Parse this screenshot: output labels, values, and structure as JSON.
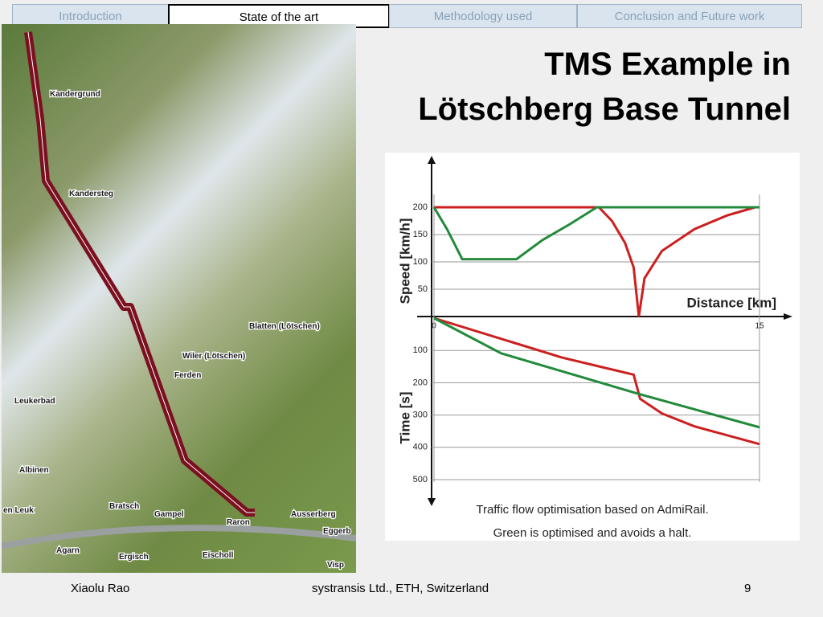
{
  "nav": {
    "tabs": [
      "Introduction",
      "State of the art",
      "Methodology used",
      "Conclusion and Future work"
    ]
  },
  "title": [
    "TMS Example in",
    "Lötschberg Base Tunnel"
  ],
  "map": {
    "labels": [
      "Kandergrund",
      "Kandersteg",
      "Blatten (Lötschen)",
      "Wiler (Lötschen)",
      "Ferden",
      "Leukerbad",
      "Albinen",
      "en Leuk",
      "Bratsch",
      "Gampel",
      "Raron",
      "Ausserberg",
      "Eggerb",
      "Agarn",
      "Ergisch",
      "Eischoll",
      "Visp"
    ]
  },
  "figure": {
    "speed_label": "Speed [km/h]",
    "time_label": "Time [s]",
    "x_label": "Distance [km]",
    "xlim": [
      0,
      15
    ],
    "xticks": [
      0,
      15
    ],
    "speed_ylim": [
      0,
      200
    ],
    "speed_ticks": [
      200,
      150,
      100,
      50
    ],
    "time_ylim": [
      0,
      500
    ],
    "time_ticks": [
      100,
      200,
      300,
      400,
      500
    ],
    "speed_series": [
      {
        "color": "#cc1f1f",
        "x": [
          0,
          7.6,
          8.2,
          8.8,
          9.2,
          9.44,
          9.7,
          10.5,
          12,
          13.5,
          14.8
        ],
        "values": [
          200,
          200,
          175,
          135,
          90,
          0,
          70,
          120,
          160,
          185,
          200
        ]
      },
      {
        "color": "#238a3c",
        "x": [
          0,
          0.6,
          1.3,
          3.8,
          5,
          6.3,
          7.5,
          15
        ],
        "values": [
          200,
          160,
          105,
          105,
          140,
          170,
          200,
          200
        ]
      }
    ],
    "time_series": [
      {
        "color": "#cc1f1f",
        "x": [
          0,
          5.9,
          9.2,
          9.5,
          10.5,
          12,
          15
        ],
        "values": [
          0,
          122,
          175,
          250,
          295,
          335,
          390
        ]
      },
      {
        "color": "#238a3c",
        "x": [
          0,
          3.1,
          9.4,
          15
        ],
        "values": [
          0,
          109,
          234,
          338
        ]
      }
    ],
    "caption": [
      "Traffic flow optimisation based on AdmiRail.",
      "Green is optimised and avoids a halt."
    ]
  },
  "footer": {
    "author": "Xiaolu Rao",
    "org": "systransis Ltd., ETH, Switzerland",
    "page": 9
  }
}
